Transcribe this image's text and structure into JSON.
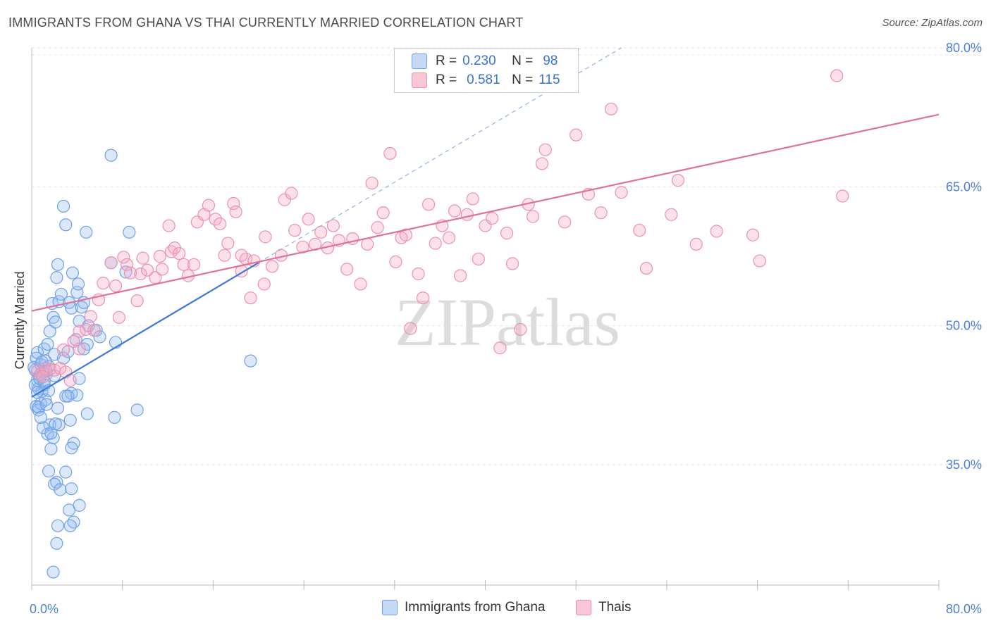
{
  "chart_data": {
    "type": "scatter",
    "title": "IMMIGRANTS FROM GHANA VS THAI CURRENTLY MARRIED CORRELATION CHART",
    "source": "Source: ZipAtlas.com",
    "xlabel": "",
    "ylabel": "Currently Married",
    "xlim": [
      0,
      80
    ],
    "ylim": [
      22,
      80
    ],
    "x_tick_labels": [
      "0.0%",
      "80.0%"
    ],
    "y_ticks": [
      35,
      50,
      65,
      80
    ],
    "y_tick_labels": [
      "35.0%",
      "50.0%",
      "65.0%",
      "80.0%"
    ],
    "watermark": "ZIPatlas",
    "legend": [
      {
        "name": "Immigrants from Ghana",
        "r": "0.230",
        "n": "98",
        "color": "#6fa0e6"
      },
      {
        "name": "Thais",
        "r": "0.581",
        "n": "115",
        "color": "#ee8fb0"
      }
    ],
    "legend_labels": {
      "r": "R =",
      "n": "N ="
    },
    "series": [
      {
        "name": "Immigrants from Ghana",
        "color": "#6fa0e6",
        "trend": {
          "x": [
            0,
            20
          ],
          "y": [
            42.3,
            56.8
          ]
        },
        "trend_dashed": {
          "x": [
            20,
            52
          ],
          "y": [
            56.8,
            80
          ]
        },
        "points": [
          [
            0.3,
            45.2
          ],
          [
            0.5,
            44.1
          ],
          [
            0.4,
            46.5
          ],
          [
            0.6,
            43.2
          ],
          [
            0.8,
            45.8
          ],
          [
            0.5,
            47.1
          ],
          [
            0.7,
            44.6
          ],
          [
            0.9,
            42.9
          ],
          [
            1.0,
            45.0
          ],
          [
            1.2,
            46.2
          ],
          [
            0.4,
            41.3
          ],
          [
            0.6,
            40.9
          ],
          [
            0.8,
            41.6
          ],
          [
            1.1,
            43.6
          ],
          [
            1.3,
            44.8
          ],
          [
            1.5,
            45.6
          ],
          [
            1.1,
            47.5
          ],
          [
            1.4,
            48.0
          ],
          [
            1.6,
            49.4
          ],
          [
            1.9,
            50.9
          ],
          [
            2.1,
            50.4
          ],
          [
            1.8,
            52.4
          ],
          [
            2.4,
            52.6
          ],
          [
            2.6,
            53.4
          ],
          [
            2.2,
            55.2
          ],
          [
            2.3,
            56.6
          ],
          [
            2.0,
            46.9
          ],
          [
            2.8,
            46.5
          ],
          [
            3.5,
            42.7
          ],
          [
            3.0,
            42.4
          ],
          [
            2.3,
            41.1
          ],
          [
            1.6,
            39.3
          ],
          [
            1.4,
            38.3
          ],
          [
            1.9,
            37.9
          ],
          [
            1.7,
            36.7
          ],
          [
            1.5,
            34.3
          ],
          [
            2.2,
            33.1
          ],
          [
            2.0,
            32.9
          ],
          [
            2.5,
            32.3
          ],
          [
            3.0,
            34.2
          ],
          [
            3.5,
            32.4
          ],
          [
            3.3,
            30.1
          ],
          [
            4.2,
            30.6
          ],
          [
            3.7,
            28.8
          ],
          [
            2.3,
            28.4
          ],
          [
            3.4,
            28.4
          ],
          [
            2.2,
            26.5
          ],
          [
            1.9,
            23.4
          ],
          [
            2.8,
            62.9
          ],
          [
            3.0,
            60.9
          ],
          [
            4.8,
            60.1
          ],
          [
            7.0,
            56.8
          ],
          [
            8.3,
            55.8
          ],
          [
            3.6,
            55.7
          ],
          [
            4.0,
            53.6
          ],
          [
            4.1,
            54.5
          ],
          [
            3.3,
            52.5
          ],
          [
            3.5,
            51.9
          ],
          [
            4.4,
            52.0
          ],
          [
            4.6,
            52.5
          ],
          [
            4.2,
            50.5
          ],
          [
            5.0,
            50.0
          ],
          [
            5.7,
            49.5
          ],
          [
            4.9,
            48.0
          ],
          [
            4.6,
            47.5
          ],
          [
            3.9,
            48.5
          ],
          [
            6.0,
            48.8
          ],
          [
            7.4,
            48.2
          ],
          [
            3.2,
            47.2
          ],
          [
            4.2,
            44.3
          ],
          [
            4.0,
            42.5
          ],
          [
            3.2,
            42.4
          ],
          [
            4.9,
            40.5
          ],
          [
            3.4,
            39.8
          ],
          [
            2.4,
            39.3
          ],
          [
            3.7,
            37.3
          ],
          [
            3.5,
            36.8
          ],
          [
            7.3,
            40.1
          ],
          [
            9.3,
            40.9
          ],
          [
            7.0,
            68.4
          ],
          [
            8.6,
            60.1
          ],
          [
            19.3,
            46.2
          ],
          [
            0.3,
            43.6
          ],
          [
            0.5,
            42.8
          ],
          [
            0.7,
            44.3
          ],
          [
            0.2,
            45.5
          ],
          [
            0.9,
            46.1
          ],
          [
            1.1,
            44.0
          ],
          [
            1.3,
            45.1
          ],
          [
            1.2,
            42.0
          ],
          [
            0.6,
            41.2
          ],
          [
            1.5,
            43.0
          ],
          [
            1.0,
            39.0
          ],
          [
            1.7,
            38.4
          ],
          [
            2.1,
            39.4
          ],
          [
            0.8,
            40.1
          ],
          [
            1.3,
            41.5
          ],
          [
            2.0,
            44.6
          ]
        ]
      },
      {
        "name": "Thais",
        "color": "#ee8fb0",
        "trend": {
          "x": [
            0,
            80
          ],
          "y": [
            51.6,
            72.8
          ]
        },
        "points": [
          [
            0.5,
            45.1
          ],
          [
            0.8,
            44.8
          ],
          [
            1.2,
            45.4
          ],
          [
            1.6,
            45.3
          ],
          [
            2.0,
            45.2
          ],
          [
            2.5,
            45.4
          ],
          [
            3.0,
            45.0
          ],
          [
            1.0,
            44.5
          ],
          [
            2.8,
            47.4
          ],
          [
            3.7,
            48.3
          ],
          [
            4.2,
            49.4
          ],
          [
            4.8,
            49.6
          ],
          [
            5.5,
            49.5
          ],
          [
            4.2,
            47.5
          ],
          [
            3.4,
            44.1
          ],
          [
            5.2,
            51.0
          ],
          [
            5.9,
            52.8
          ],
          [
            6.3,
            54.6
          ],
          [
            7.0,
            56.8
          ],
          [
            7.4,
            54.3
          ],
          [
            7.7,
            50.9
          ],
          [
            8.1,
            57.4
          ],
          [
            8.4,
            56.6
          ],
          [
            8.7,
            55.7
          ],
          [
            9.3,
            52.7
          ],
          [
            9.6,
            55.6
          ],
          [
            9.8,
            57.3
          ],
          [
            10.2,
            56.0
          ],
          [
            10.9,
            55.2
          ],
          [
            11.3,
            57.5
          ],
          [
            11.5,
            56.1
          ],
          [
            12.1,
            60.8
          ],
          [
            12.3,
            58.0
          ],
          [
            12.6,
            58.4
          ],
          [
            13.0,
            57.8
          ],
          [
            13.4,
            56.6
          ],
          [
            13.8,
            55.4
          ],
          [
            14.3,
            56.6
          ],
          [
            14.6,
            61.2
          ],
          [
            15.2,
            62.0
          ],
          [
            15.6,
            63.0
          ],
          [
            16.2,
            61.5
          ],
          [
            16.6,
            61.0
          ],
          [
            17.0,
            57.6
          ],
          [
            17.3,
            58.9
          ],
          [
            17.8,
            63.2
          ],
          [
            18.0,
            62.3
          ],
          [
            18.5,
            55.9
          ],
          [
            18.9,
            57.2
          ],
          [
            19.3,
            53.0
          ],
          [
            18.5,
            57.6
          ],
          [
            19.6,
            57.0
          ],
          [
            20.5,
            54.5
          ],
          [
            20.6,
            59.6
          ],
          [
            21.2,
            56.4
          ],
          [
            22.0,
            57.6
          ],
          [
            22.3,
            63.6
          ],
          [
            22.9,
            64.3
          ],
          [
            23.2,
            60.3
          ],
          [
            23.9,
            58.5
          ],
          [
            24.4,
            61.5
          ],
          [
            25.0,
            58.8
          ],
          [
            25.5,
            60.1
          ],
          [
            26.1,
            58.4
          ],
          [
            26.6,
            60.8
          ],
          [
            27.1,
            59.2
          ],
          [
            27.8,
            56.1
          ],
          [
            28.3,
            59.4
          ],
          [
            29.0,
            54.5
          ],
          [
            29.6,
            58.8
          ],
          [
            30.0,
            65.4
          ],
          [
            30.5,
            60.6
          ],
          [
            31.0,
            62.2
          ],
          [
            31.6,
            68.6
          ],
          [
            32.1,
            56.9
          ],
          [
            32.6,
            59.5
          ],
          [
            33.0,
            59.8
          ],
          [
            33.4,
            49.7
          ],
          [
            34.1,
            55.6
          ],
          [
            34.5,
            53.0
          ],
          [
            35.0,
            63.1
          ],
          [
            35.6,
            58.9
          ],
          [
            36.2,
            60.8
          ],
          [
            36.8,
            59.5
          ],
          [
            37.3,
            62.4
          ],
          [
            37.8,
            55.4
          ],
          [
            38.4,
            62.0
          ],
          [
            38.9,
            63.7
          ],
          [
            39.4,
            57.2
          ],
          [
            40.0,
            60.8
          ],
          [
            40.6,
            61.6
          ],
          [
            41.3,
            47.6
          ],
          [
            41.9,
            60.0
          ],
          [
            42.4,
            56.7
          ],
          [
            43.1,
            49.6
          ],
          [
            43.8,
            63.1
          ],
          [
            44.2,
            61.8
          ],
          [
            45.0,
            67.5
          ],
          [
            45.3,
            69.0
          ],
          [
            47.0,
            61.2
          ],
          [
            48.0,
            70.6
          ],
          [
            49.1,
            64.2
          ],
          [
            50.2,
            62.2
          ],
          [
            51.1,
            73.4
          ],
          [
            52.0,
            64.4
          ],
          [
            53.6,
            60.3
          ],
          [
            54.2,
            56.2
          ],
          [
            56.4,
            62.0
          ],
          [
            57.0,
            65.7
          ],
          [
            58.6,
            58.8
          ],
          [
            60.4,
            60.2
          ],
          [
            63.6,
            59.8
          ],
          [
            64.2,
            57.0
          ],
          [
            71.0,
            77.0
          ],
          [
            71.5,
            64.0
          ]
        ]
      }
    ]
  }
}
